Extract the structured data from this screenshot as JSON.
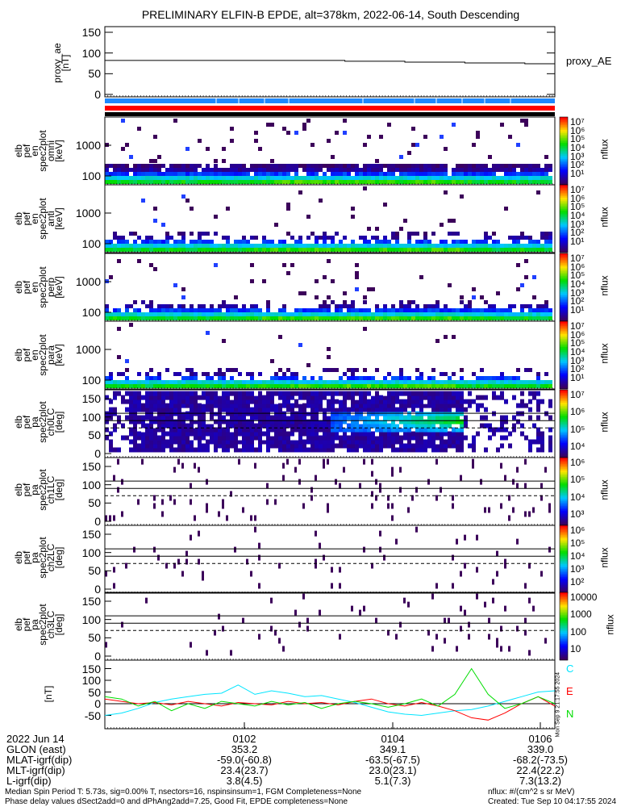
{
  "title": "PRELIMINARY ELFIN-B EPDE, alt=378km, 2022-06-14, South Descending",
  "proxy_panel": {
    "ylabel": [
      "proxy_ae",
      "[nT]"
    ],
    "legend": "proxy_AE",
    "yticks": [
      "150",
      "100",
      "50",
      "0"
    ]
  },
  "status_bars": {
    "colors": [
      "#1e88ff",
      "#ff0000",
      "#000000"
    ]
  },
  "chart_data": [
    {
      "type": "line",
      "name": "proxy_ae",
      "ylabel": "proxy_ae [nT]",
      "ylim": [
        -10,
        160
      ],
      "values": [
        82,
        82,
        82,
        82,
        82,
        82,
        82,
        82,
        80,
        80,
        78,
        78,
        76,
        76,
        74
      ],
      "legend": "proxy_AE"
    },
    {
      "type": "heatmap",
      "name": "elb pef en spec2plot omni",
      "ylabel": [
        "elb",
        "pef",
        "en",
        "spec2plot",
        "omni",
        "[keV]"
      ],
      "yscale": "log",
      "ylim": [
        51,
        8300
      ],
      "yticks": [
        "1000",
        "100"
      ],
      "colorbar": {
        "label": "nflux",
        "ticks": [
          "10⁷",
          "10⁶",
          "10⁵",
          "10⁴",
          "10³",
          "10²",
          "10¹"
        ]
      },
      "band_intensity": 1.0,
      "sparse_density": 0.05
    },
    {
      "type": "heatmap",
      "name": "elb pef en spec2plot anti",
      "ylabel": [
        "elb",
        "pef",
        "en",
        "spec2plot",
        "anti",
        "[keV]"
      ],
      "yscale": "log",
      "ylim": [
        51,
        8300
      ],
      "yticks": [
        "1000",
        "100"
      ],
      "colorbar": {
        "label": "nflux",
        "ticks": [
          "10⁷",
          "10⁶",
          "10⁵",
          "10⁴",
          "10³",
          "10²",
          "10¹"
        ]
      },
      "band_intensity": 0.8,
      "sparse_density": 0.02
    },
    {
      "type": "heatmap",
      "name": "elb pef en spec2plot perp",
      "ylabel": [
        "elb",
        "pef",
        "en",
        "spec2plot",
        "perp",
        "[keV]"
      ],
      "yscale": "log",
      "ylim": [
        51,
        8300
      ],
      "yticks": [
        "1000",
        "100"
      ],
      "colorbar": {
        "label": "nflux",
        "ticks": [
          "10⁷",
          "10⁶",
          "10⁵",
          "10⁴",
          "10³",
          "10²",
          "10¹"
        ]
      },
      "band_intensity": 1.0,
      "sparse_density": 0.03
    },
    {
      "type": "heatmap",
      "name": "elb pef en spec2plot para",
      "ylabel": [
        "elb",
        "pef",
        "en",
        "spec2plot",
        "para",
        "[keV]"
      ],
      "yscale": "log",
      "ylim": [
        51,
        8300
      ],
      "yticks": [
        "1000",
        "100"
      ],
      "colorbar": {
        "label": "nflux",
        "ticks": [
          "10⁷",
          "10⁶",
          "10⁵",
          "10⁴",
          "10³",
          "10²",
          "10¹"
        ]
      },
      "band_intensity": 0.7,
      "sparse_density": 0.012
    },
    {
      "type": "heatmap",
      "name": "elb pef pa spec2plot ch0LC",
      "ylabel": [
        "elb",
        "pef",
        "pa",
        "spec2plot",
        "ch0LC",
        "[deg]"
      ],
      "ylim": [
        -8,
        174
      ],
      "yticks": [
        "150",
        "100",
        "50",
        "0"
      ],
      "reference_lines_deg": {
        "solid": [
          110,
          90
        ],
        "dashed": [
          70
        ]
      },
      "colorbar": {
        "label": "nflux",
        "ticks": [
          "10⁷",
          "10⁶",
          "10⁵",
          "10⁴"
        ]
      },
      "dense": true
    },
    {
      "type": "heatmap",
      "name": "elb pef pa spec2plot ch1LC",
      "ylabel": [
        "elb",
        "pef",
        "pa",
        "spec2plot",
        "ch1LC",
        "[deg]"
      ],
      "ylim": [
        -8,
        174
      ],
      "yticks": [
        "150",
        "100",
        "50",
        "0"
      ],
      "reference_lines_deg": {
        "solid": [
          110,
          90
        ],
        "dashed": [
          70
        ]
      },
      "colorbar": {
        "label": "nflux",
        "ticks": [
          "10⁶",
          "10⁵",
          "10⁴",
          "10³"
        ]
      },
      "sparse_density": 0.06
    },
    {
      "type": "heatmap",
      "name": "elb pef pa spec2plot ch2LC",
      "ylabel": [
        "elb",
        "pef",
        "pa",
        "spec2plot",
        "ch2LC",
        "[deg]"
      ],
      "ylim": [
        -8,
        174
      ],
      "yticks": [
        "150",
        "100",
        "50",
        "0"
      ],
      "reference_lines_deg": {
        "solid": [
          110,
          90
        ],
        "dashed": [
          70
        ]
      },
      "colorbar": {
        "label": "nflux",
        "ticks": [
          "10⁶",
          "10⁵",
          "10⁴",
          "10³",
          "10²"
        ]
      },
      "sparse_density": 0.03
    },
    {
      "type": "heatmap",
      "name": "elb pef pa spec2plot ch3LC",
      "ylabel": [
        "elb",
        "pef",
        "pa",
        "spec2plot",
        "ch3LC",
        "[deg]"
      ],
      "ylim": [
        -8,
        174
      ],
      "yticks": [
        "150",
        "100",
        "50",
        "0"
      ],
      "reference_lines_deg": {
        "solid": [
          110,
          90
        ],
        "dashed": [
          70
        ]
      },
      "colorbar": {
        "label": "nflux",
        "ticks": [
          "10000",
          "1000",
          "100",
          "10"
        ]
      },
      "sparse_density": 0.03
    },
    {
      "type": "line",
      "name": "magnetic field",
      "ylabel": "[nT]",
      "ylim": [
        -105,
        188
      ],
      "yticks": [
        "150",
        "100",
        "50",
        "0",
        "-50"
      ],
      "zero_line": 0,
      "series": [
        {
          "name": "C",
          "color": "#00e5ff",
          "values": [
            -50,
            -40,
            -20,
            5,
            20,
            30,
            40,
            45,
            80,
            40,
            55,
            45,
            30,
            35,
            20,
            5,
            -15,
            -35,
            -45,
            -50,
            -40,
            -30,
            -25,
            -10,
            10,
            30,
            50,
            55
          ]
        },
        {
          "name": "E",
          "color": "#ff0000",
          "values": [
            20,
            10,
            0,
            5,
            -5,
            10,
            0,
            -10,
            5,
            0,
            -5,
            10,
            0,
            5,
            -5,
            10,
            20,
            0,
            -10,
            5,
            -10,
            -30,
            -60,
            -70,
            -40,
            0,
            30,
            -10
          ]
        },
        {
          "name": "N",
          "color": "#00dd00",
          "values": [
            30,
            20,
            -10,
            10,
            -30,
            0,
            -20,
            10,
            0,
            -10,
            10,
            -5,
            5,
            -20,
            0,
            10,
            0,
            -15,
            0,
            20,
            -10,
            40,
            150,
            40,
            -20,
            0,
            30,
            0
          ]
        }
      ]
    }
  ],
  "stamp": "Mon Sep  9 21:17:55 2024",
  "time_axis": {
    "row_labels": [
      "2022 Jun 14",
      "GLON (east)",
      "MLAT-igrf(dip)",
      "MLT-igrf(dip)",
      "L-igrf(dip)"
    ],
    "columns": [
      {
        "time": "0102",
        "glon": "353.2",
        "mlat": "-59.0(-60.8)",
        "mlt": "23.4(23.7)",
        "l": "3.8(4.5)"
      },
      {
        "time": "0104",
        "glon": "349.1",
        "mlat": "-63.5(-67.5)",
        "mlt": "23.0(23.1)",
        "l": "5.1(7.3)"
      },
      {
        "time": "0106",
        "glon": "339.0",
        "mlat": "-68.2(-73.5)",
        "mlt": "22.4(22.2)",
        "l": "7.3(13.2)"
      }
    ]
  },
  "footer": {
    "line1": "Median Spin Period T: 5.73s, sig=0.00% T, nsectors=16, nspinsinsum=1, FGM Completeness=None",
    "line2": "Phase delay values dSect2add=0 and dPhAng2add=7.25, Good Fit, EPDE completeness=None",
    "units": "nflux: #/(cm^2 s sr MeV)",
    "created": "Created: Tue Sep 10 04:17:55 2024"
  }
}
